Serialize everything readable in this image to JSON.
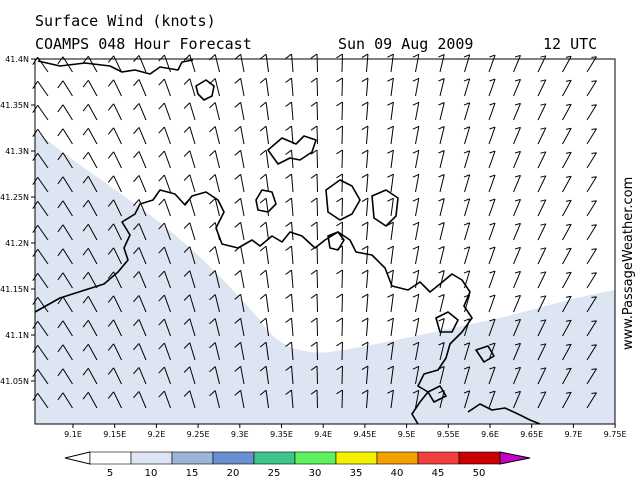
{
  "header": {
    "title": "Surface Wind (knots)",
    "model": "COAMPS 048 Hour Forecast",
    "date": "Sun 09 Aug 2009",
    "time": "12 UTC"
  },
  "watermark": "www.PassageWeather.com",
  "axes": {
    "lat_ticks": [
      "41.4N",
      "41.35N",
      "41.3N",
      "41.25N",
      "41.2N",
      "41.15N",
      "41.1N",
      "41.05N"
    ],
    "lon_ticks": [
      "9.1E",
      "9.15E",
      "9.2E",
      "9.25E",
      "9.3E",
      "9.35E",
      "9.4E",
      "9.45E",
      "9.5E",
      "9.55E",
      "9.6E",
      "9.65E",
      "9.7E",
      "9.75E"
    ]
  },
  "legend": {
    "labels": [
      "5",
      "10",
      "15",
      "20",
      "25",
      "30",
      "35",
      "40",
      "45",
      "50"
    ],
    "colors": [
      "#ffffff",
      "#dde4f2",
      "#9db4d9",
      "#6b8fd0",
      "#3cc58c",
      "#5ef25e",
      "#f2f200",
      "#f4a000",
      "#f24040",
      "#c80000",
      "#c800c8"
    ]
  },
  "colors": {
    "light_wind_shading": "#dde4f2",
    "land_outline": "#000000",
    "wind_barb": "#000000"
  }
}
